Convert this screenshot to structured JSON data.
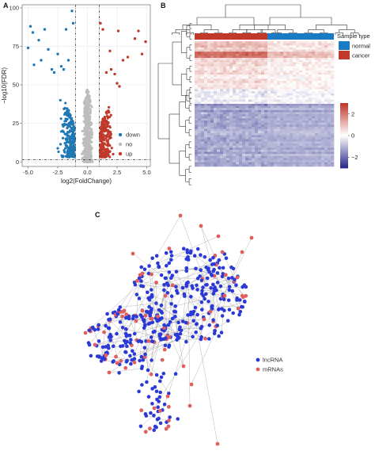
{
  "panels": {
    "a": "A",
    "b": "B",
    "c": "C"
  },
  "colors": {
    "down": "#1f78b4",
    "no": "#bdbdbd",
    "up": "#c0392b",
    "normal": "#1a7ac4",
    "cancer": "#c0392b",
    "lncRNA": "#2b3ad6",
    "mRNAs": "#e06060",
    "heat_high": "#c0392b",
    "heat_mid": "#ffffff",
    "heat_low": "#2b2b8c"
  },
  "chart_data": [
    {
      "type": "scatter",
      "panel": "A",
      "xlabel": "log2(FoldChange)",
      "ylabel": "−log10(FDR)",
      "xlim": [
        -5.5,
        5.3
      ],
      "ylim": [
        -3,
        102
      ],
      "xticks": [
        "-5.0",
        "-2.5",
        "0.0",
        "2.5",
        "5.0"
      ],
      "yticks": [
        "0",
        "25",
        "50",
        "75",
        "100"
      ],
      "grid": true,
      "legend_position": "right",
      "thresholds": {
        "x": [
          -1,
          1
        ],
        "y": 1.3
      },
      "series": [
        {
          "name": "down",
          "points": [
            [
              -4.8,
              88
            ],
            [
              -4.6,
              84
            ],
            [
              -5.0,
              74
            ],
            [
              -4.5,
              63
            ],
            [
              -4.1,
              79
            ],
            [
              -3.6,
              86
            ],
            [
              -3.3,
              73
            ],
            [
              -3.0,
              60
            ],
            [
              -2.8,
              58
            ],
            [
              -2.5,
              70
            ],
            [
              -2.0,
              60
            ],
            [
              -1.3,
              98
            ],
            [
              -1.8,
              86
            ],
            [
              -1.2,
              90
            ],
            [
              -3.9,
              66
            ],
            [
              -2.2,
              62
            ],
            [
              -1.6,
              66
            ]
          ]
        },
        {
          "name": "no"
        },
        {
          "name": "up",
          "points": [
            [
              1.1,
              90
            ],
            [
              1.3,
              86
            ],
            [
              1.9,
              72
            ],
            [
              2.3,
              57
            ],
            [
              2.5,
              51
            ],
            [
              2.6,
              85
            ],
            [
              3.4,
              68
            ],
            [
              4.0,
              80
            ],
            [
              4.3,
              85
            ],
            [
              4.6,
              70
            ],
            [
              4.9,
              78
            ],
            [
              3.0,
              66
            ],
            [
              2.7,
              49
            ],
            [
              2.0,
              60
            ],
            [
              1.6,
              58
            ]
          ]
        }
      ]
    },
    {
      "type": "heatmap",
      "panel": "B",
      "legend_title": "Sample type",
      "legend_entries": [
        "normal",
        "cancer"
      ],
      "color_scale_ticks": [
        "2",
        "0",
        "−2"
      ],
      "color_range": [
        -3,
        3
      ]
    },
    {
      "type": "network",
      "panel": "C",
      "legend_entries": [
        "lncRNA",
        "mRNAs"
      ]
    }
  ]
}
